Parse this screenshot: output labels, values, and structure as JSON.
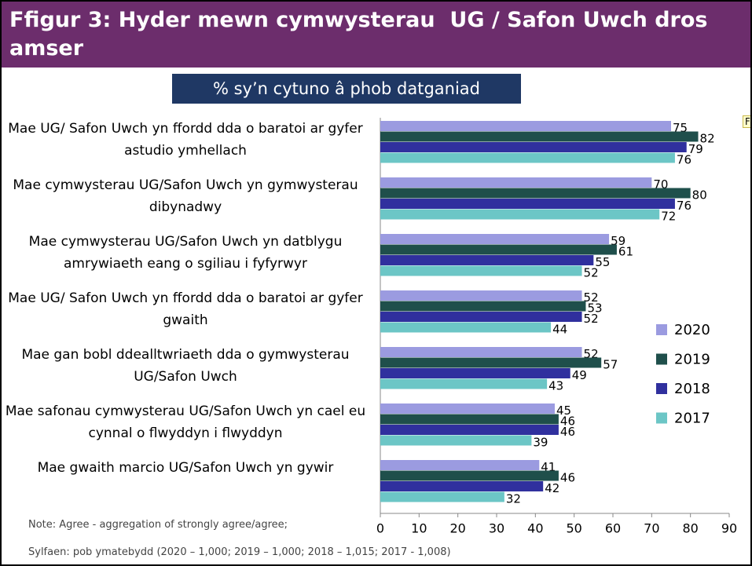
{
  "chart_data": {
    "type": "bar",
    "orientation": "horizontal",
    "title": "Ffigur 3: Hyder mewn cymwysterau  UG / Safon Uwch dros amser",
    "subtitle": "% sy’n cytuno â phob datganiad",
    "annotation": "Fi",
    "categories": [
      "Mae UG/ Safon Uwch yn ffordd dda o baratoi ar gyfer astudio ymhellach",
      "Mae cymwysterau UG/Safon Uwch yn gymwysterau dibynadwy",
      "Mae cymwysterau UG/Safon Uwch yn datblygu amrywiaeth eang o sgiliau i fyfyrwyr",
      "Mae UG/ Safon Uwch yn ffordd dda o baratoi ar gyfer gwaith",
      "Mae gan bobl ddealltwriaeth dda o gymwysterau UG/Safon Uwch",
      "Mae safonau cymwysterau UG/Safon Uwch yn cael eu cynnal o flwyddyn i flwyddyn",
      "Mae gwaith marcio UG/Safon Uwch yn gywir"
    ],
    "series": [
      {
        "name": "2020",
        "color": "#9b9be0",
        "values": [
          75,
          70,
          59,
          52,
          52,
          45,
          41
        ]
      },
      {
        "name": "2019",
        "color": "#1f4f4b",
        "values": [
          82,
          80,
          61,
          53,
          57,
          46,
          46
        ]
      },
      {
        "name": "2018",
        "color": "#30309e",
        "values": [
          79,
          76,
          55,
          52,
          49,
          46,
          42
        ]
      },
      {
        "name": "2017",
        "color": "#6cc6c6",
        "values": [
          76,
          72,
          52,
          44,
          43,
          39,
          32
        ]
      }
    ],
    "xlim": [
      0,
      90
    ],
    "xticks": [
      0,
      10,
      20,
      30,
      40,
      50,
      60,
      70,
      80,
      90
    ],
    "notes": [
      "Note: Agree - aggregation of strongly agree/agree;",
      "Sylfaen: pob ymatebydd (2020 – 1,000; 2019 – 1,000; 2018 – 1,015; 2017 - 1,008)"
    ]
  }
}
